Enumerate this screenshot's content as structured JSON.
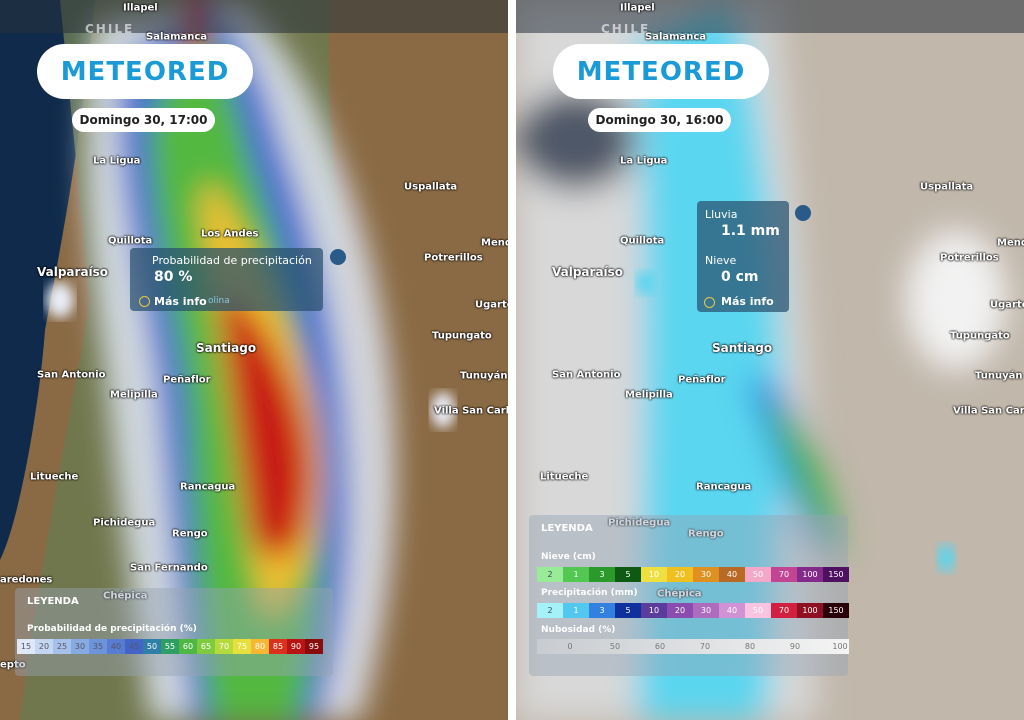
{
  "left": {
    "header_label": "CHILE",
    "logo": "METEORED",
    "time": "Domingo 30, 17:00",
    "cities": [
      "Illapel",
      "Salamanca",
      "La Ligua",
      "Uspallata",
      "Los Andes",
      "Quillota",
      "Mend",
      "Potrerillos",
      "Valparaíso",
      "Ugartec",
      "Tupungato",
      "Santiago",
      "San Antonio",
      "Peñaflor",
      "Melipilla",
      "Tunuyán",
      "Villa San Carlos",
      "Litueche",
      "Rancagua",
      "Pichidegua",
      "Rengo",
      "San Fernando",
      "aredones",
      "Chépica",
      "epto"
    ],
    "popup": {
      "title": "Probabilidad de precipitación",
      "value": "80 %",
      "link": "Más info",
      "extra": "olina"
    },
    "legend": {
      "title": "LEYENDA",
      "scale_title": "Probabilidad de precipitación (%)",
      "labels": [
        15,
        20,
        25,
        30,
        35,
        40,
        45,
        50,
        55,
        60,
        65,
        70,
        75,
        80,
        85,
        90,
        95
      ],
      "colors": [
        "#dfe8f6",
        "#c4d6f0",
        "#a6c1ea",
        "#88aae2",
        "#6d93da",
        "#587cd2",
        "#4565c6",
        "#2f7fa8",
        "#2f9e64",
        "#4fb844",
        "#7ecc3e",
        "#b4da3c",
        "#e6e03e",
        "#f6b832",
        "#d8321c",
        "#b81414",
        "#8a0c0c"
      ]
    }
  },
  "right": {
    "header_label": "CHILE",
    "logo": "METEORED",
    "time": "Domingo 30, 16:00",
    "cities": [
      "Illapel",
      "Salamanca",
      "La Ligua",
      "Uspallata",
      "Quillota",
      "Mend",
      "Potrerillos",
      "Valparaíso",
      "Ugartec",
      "Tupungato",
      "Santiago",
      "San Antonio",
      "Peñaflor",
      "Melipilla",
      "Tunuyán",
      "Villa San Carlos",
      "Litueche",
      "Rancagua",
      "Pichidegua",
      "Rengo",
      "Chépica"
    ],
    "popup": {
      "rain_title": "Lluvia",
      "rain_value": "1.1 mm",
      "snow_title": "Nieve",
      "snow_value": "0 cm",
      "link": "Más info"
    },
    "legend": {
      "title": "LEYENDA",
      "snow_title": "Nieve (cm)",
      "snow_labels": [
        2,
        1,
        3,
        5,
        10,
        20,
        30,
        40,
        50,
        70,
        100,
        150
      ],
      "snow_colors": [
        "#98ec98",
        "#52c852",
        "#2a9a2a",
        "#0e5a14",
        "#eee040",
        "#f0c020",
        "#e09020",
        "#b86a24",
        "#f4a8c8",
        "#c44494",
        "#842a8a",
        "#4e1060"
      ],
      "precip_title": "Precipitación (mm)",
      "precip_labels": [
        2,
        1,
        3,
        5,
        10,
        20,
        30,
        40,
        50,
        70,
        100,
        150
      ],
      "precip_colors": [
        "#a4f2f8",
        "#52c8f0",
        "#3280e0",
        "#10309e",
        "#5a3c9c",
        "#8a4cae",
        "#ae6cbe",
        "#d092d4",
        "#f8c4e2",
        "#d22040",
        "#8e1022",
        "#2a0008"
      ],
      "cloud_title": "Nubosidad (%)",
      "cloud_labels": [
        0,
        50,
        60,
        70,
        80,
        90,
        100
      ]
    }
  }
}
